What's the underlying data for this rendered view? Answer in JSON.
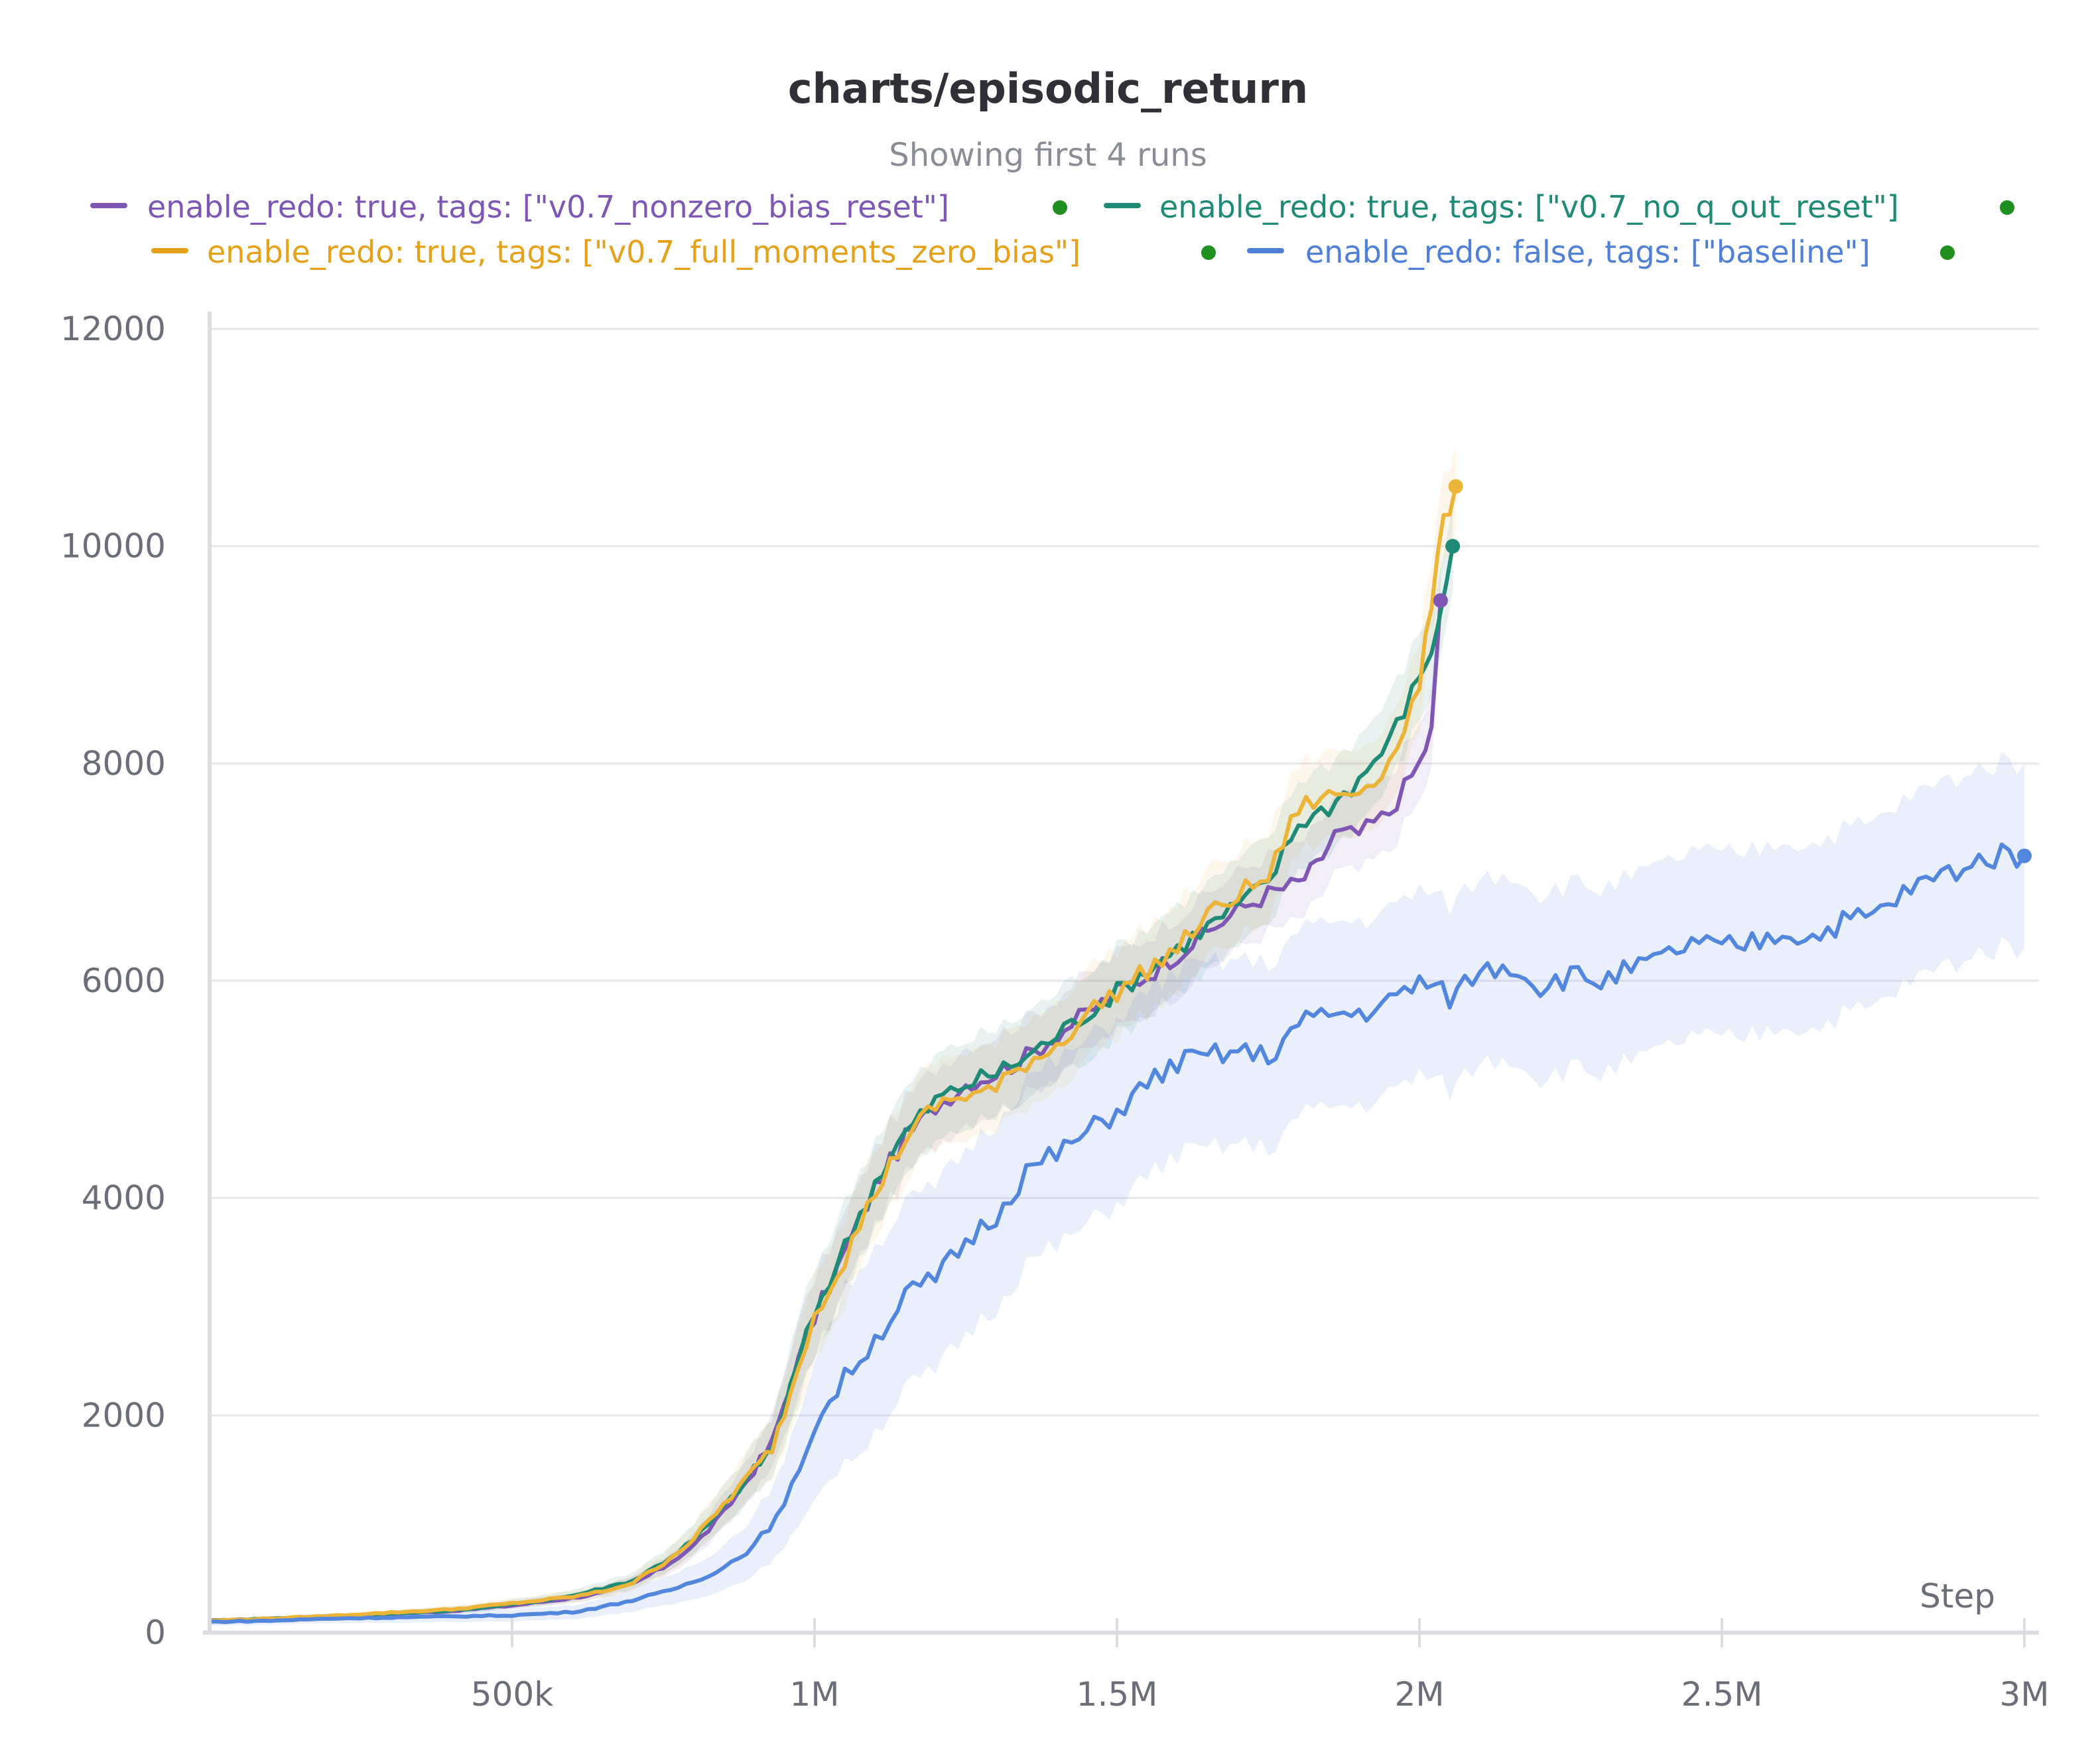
{
  "chart_data": {
    "type": "line",
    "title": "charts/episodic_return",
    "subtitle": "Showing first 4 runs",
    "xlabel": "Step",
    "ylabel": "",
    "xlim": [
      0,
      3000000
    ],
    "ylim": [
      0,
      12000
    ],
    "grid": true,
    "legend_position": "top",
    "x_ticks": [
      {
        "value": 500000,
        "label": "500k"
      },
      {
        "value": 1000000,
        "label": "1M"
      },
      {
        "value": 1500000,
        "label": "1.5M"
      },
      {
        "value": 2000000,
        "label": "2M"
      },
      {
        "value": 2500000,
        "label": "2.5M"
      },
      {
        "value": 3000000,
        "label": "3M"
      }
    ],
    "y_ticks": [
      {
        "value": 0,
        "label": "0"
      },
      {
        "value": 2000,
        "label": "2000"
      },
      {
        "value": 4000,
        "label": "4000"
      },
      {
        "value": 6000,
        "label": "6000"
      },
      {
        "value": 8000,
        "label": "8000"
      },
      {
        "value": 10000,
        "label": "10000"
      },
      {
        "value": 12000,
        "label": "12000"
      }
    ],
    "series": [
      {
        "name": "enable_redo: true, tags: [\"v0.7_nonzero_bias_reset\"]",
        "color": "#7e57b5",
        "band_width": 350,
        "points": [
          [
            0,
            110
          ],
          [
            100000,
            130
          ],
          [
            200000,
            150
          ],
          [
            300000,
            175
          ],
          [
            400000,
            200
          ],
          [
            500000,
            250
          ],
          [
            600000,
            320
          ],
          [
            650000,
            370
          ],
          [
            700000,
            450
          ],
          [
            750000,
            600
          ],
          [
            800000,
            800
          ],
          [
            850000,
            1100
          ],
          [
            900000,
            1500
          ],
          [
            930000,
            1750
          ],
          [
            960000,
            2300
          ],
          [
            1000000,
            2900
          ],
          [
            1050000,
            3500
          ],
          [
            1100000,
            4100
          ],
          [
            1150000,
            4550
          ],
          [
            1200000,
            4850
          ],
          [
            1250000,
            5050
          ],
          [
            1300000,
            5150
          ],
          [
            1350000,
            5300
          ],
          [
            1400000,
            5500
          ],
          [
            1450000,
            5700
          ],
          [
            1500000,
            5900
          ],
          [
            1550000,
            6050
          ],
          [
            1600000,
            6250
          ],
          [
            1650000,
            6450
          ],
          [
            1700000,
            6650
          ],
          [
            1750000,
            6800
          ],
          [
            1800000,
            6900
          ],
          [
            1830000,
            7050
          ],
          [
            1860000,
            7350
          ],
          [
            1900000,
            7350
          ],
          [
            1950000,
            7550
          ],
          [
            2000000,
            8000
          ],
          [
            2020000,
            8300
          ],
          [
            2035000,
            9500
          ]
        ]
      },
      {
        "name": "enable_redo: true, tags: [\"v0.7_no_q_out_reset\"]",
        "color": "#1f8a76",
        "band_width": 400,
        "points": [
          [
            0,
            110
          ],
          [
            100000,
            130
          ],
          [
            200000,
            150
          ],
          [
            300000,
            175
          ],
          [
            400000,
            205
          ],
          [
            500000,
            260
          ],
          [
            600000,
            340
          ],
          [
            650000,
            410
          ],
          [
            700000,
            480
          ],
          [
            750000,
            650
          ],
          [
            800000,
            850
          ],
          [
            850000,
            1150
          ],
          [
            900000,
            1500
          ],
          [
            930000,
            1700
          ],
          [
            960000,
            2250
          ],
          [
            1000000,
            2950
          ],
          [
            1050000,
            3550
          ],
          [
            1100000,
            4150
          ],
          [
            1150000,
            4600
          ],
          [
            1200000,
            4900
          ],
          [
            1250000,
            5050
          ],
          [
            1300000,
            5150
          ],
          [
            1350000,
            5300
          ],
          [
            1400000,
            5500
          ],
          [
            1450000,
            5700
          ],
          [
            1500000,
            5900
          ],
          [
            1550000,
            6100
          ],
          [
            1600000,
            6300
          ],
          [
            1650000,
            6500
          ],
          [
            1700000,
            6700
          ],
          [
            1750000,
            6900
          ],
          [
            1800000,
            7450
          ],
          [
            1850000,
            7600
          ],
          [
            1900000,
            7850
          ],
          [
            1950000,
            8200
          ],
          [
            2000000,
            8800
          ],
          [
            2030000,
            9200
          ],
          [
            2045000,
            9700
          ],
          [
            2055000,
            10000
          ]
        ]
      },
      {
        "name": "enable_redo: true, tags: [\"v0.7_full_moments_zero_bias\"]",
        "color": "#ecb53a",
        "band_width": 400,
        "points": [
          [
            0,
            110
          ],
          [
            100000,
            130
          ],
          [
            200000,
            155
          ],
          [
            300000,
            185
          ],
          [
            400000,
            215
          ],
          [
            500000,
            270
          ],
          [
            600000,
            330
          ],
          [
            650000,
            380
          ],
          [
            700000,
            460
          ],
          [
            750000,
            640
          ],
          [
            800000,
            860
          ],
          [
            850000,
            1180
          ],
          [
            900000,
            1500
          ],
          [
            930000,
            1700
          ],
          [
            960000,
            2200
          ],
          [
            1000000,
            2950
          ],
          [
            1050000,
            3450
          ],
          [
            1100000,
            4050
          ],
          [
            1150000,
            4550
          ],
          [
            1200000,
            4850
          ],
          [
            1250000,
            4950
          ],
          [
            1300000,
            5000
          ],
          [
            1350000,
            5250
          ],
          [
            1400000,
            5400
          ],
          [
            1450000,
            5700
          ],
          [
            1500000,
            5900
          ],
          [
            1550000,
            6100
          ],
          [
            1600000,
            6300
          ],
          [
            1650000,
            6600
          ],
          [
            1700000,
            6800
          ],
          [
            1750000,
            6950
          ],
          [
            1800000,
            7600
          ],
          [
            1850000,
            7700
          ],
          [
            1900000,
            7750
          ],
          [
            1950000,
            8000
          ],
          [
            2000000,
            8700
          ],
          [
            2020000,
            9500
          ],
          [
            2040000,
            10200
          ],
          [
            2060000,
            10550
          ]
        ]
      },
      {
        "name": "enable_redo: false, tags: [\"baseline\"]",
        "color": "#5387dd",
        "band_width": 850,
        "points": [
          [
            0,
            100
          ],
          [
            100000,
            110
          ],
          [
            200000,
            130
          ],
          [
            300000,
            140
          ],
          [
            400000,
            150
          ],
          [
            500000,
            160
          ],
          [
            550000,
            175
          ],
          [
            600000,
            190
          ],
          [
            650000,
            240
          ],
          [
            700000,
            300
          ],
          [
            750000,
            370
          ],
          [
            800000,
            470
          ],
          [
            850000,
            600
          ],
          [
            900000,
            800
          ],
          [
            950000,
            1150
          ],
          [
            1000000,
            1900
          ],
          [
            1050000,
            2350
          ],
          [
            1100000,
            2700
          ],
          [
            1150000,
            3100
          ],
          [
            1200000,
            3250
          ],
          [
            1250000,
            3600
          ],
          [
            1300000,
            3850
          ],
          [
            1350000,
            4250
          ],
          [
            1400000,
            4400
          ],
          [
            1450000,
            4600
          ],
          [
            1500000,
            4800
          ],
          [
            1550000,
            5050
          ],
          [
            1600000,
            5250
          ],
          [
            1650000,
            5300
          ],
          [
            1700000,
            5350
          ],
          [
            1750000,
            5300
          ],
          [
            1800000,
            5600
          ],
          [
            1850000,
            5700
          ],
          [
            1900000,
            5700
          ],
          [
            1950000,
            5800
          ],
          [
            2000000,
            6000
          ],
          [
            2050000,
            5850
          ],
          [
            2100000,
            6100
          ],
          [
            2150000,
            6150
          ],
          [
            2200000,
            5950
          ],
          [
            2250000,
            6050
          ],
          [
            2300000,
            6000
          ],
          [
            2350000,
            6100
          ],
          [
            2400000,
            6200
          ],
          [
            2450000,
            6350
          ],
          [
            2500000,
            6300
          ],
          [
            2550000,
            6350
          ],
          [
            2600000,
            6450
          ],
          [
            2650000,
            6400
          ],
          [
            2700000,
            6550
          ],
          [
            2750000,
            6600
          ],
          [
            2800000,
            6800
          ],
          [
            2850000,
            6950
          ],
          [
            2900000,
            7050
          ],
          [
            2950000,
            7150
          ],
          [
            3000000,
            7150
          ]
        ]
      }
    ]
  },
  "legend": {
    "items": [
      {
        "label": "enable_redo: true, tags: [\"v0.7_nonzero_bias_reset\"]",
        "color": "#7e57b5"
      },
      {
        "label": "enable_redo: true, tags: [\"v0.7_no_q_out_reset\"]",
        "color": "#1f8a76"
      },
      {
        "label": "enable_redo: true, tags: [\"v0.7_full_moments_zero_bias\"]",
        "color": "#e3a21a"
      },
      {
        "label": "enable_redo: false, tags: [\"baseline\"]",
        "color": "#4f7fd6"
      }
    ],
    "status_dot_color": "#1f8f1f"
  },
  "colors": {
    "title": "#2f3136",
    "subtitle": "#8a8d94",
    "gridline": "#e8e8ec",
    "axis": "#dcdde0",
    "tick_label": "#6b6e76"
  }
}
